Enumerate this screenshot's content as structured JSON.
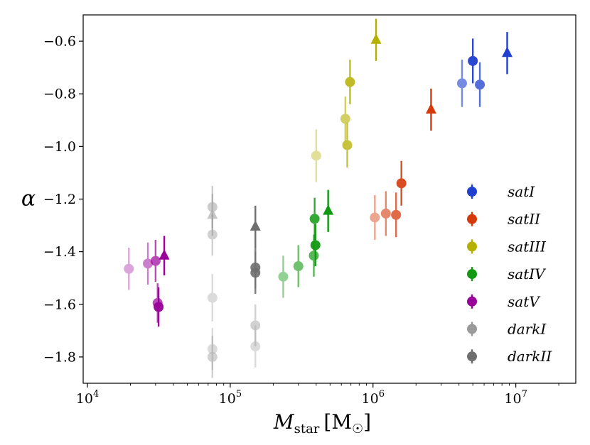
{
  "chart_data": {
    "type": "scatter",
    "title": "",
    "xlabel_main": "M",
    "xlabel_sub": "star",
    "xlabel_unit": "[M",
    "xlabel_unit_sub": "☉",
    "xlabel_close": "]",
    "ylabel": "α",
    "xscale": "log",
    "xlim_log10": [
      3.97,
      7.42
    ],
    "ylim": [
      -1.9,
      -0.5
    ],
    "xticks": [
      {
        "exp": 4,
        "label_base": "10",
        "label_exp": "4"
      },
      {
        "exp": 5,
        "label_base": "10",
        "label_exp": "5"
      },
      {
        "exp": 6,
        "label_base": "10",
        "label_exp": "6"
      },
      {
        "exp": 7,
        "label_base": "10",
        "label_exp": "7"
      }
    ],
    "yticks": [
      {
        "value": -0.6,
        "label": "−0.6"
      },
      {
        "value": -0.8,
        "label": "−0.8"
      },
      {
        "value": -1.0,
        "label": "−1.0"
      },
      {
        "value": -1.2,
        "label": "−1.2"
      },
      {
        "value": -1.4,
        "label": "−1.4"
      },
      {
        "value": -1.6,
        "label": "−1.6"
      },
      {
        "value": -1.8,
        "label": "−1.8"
      }
    ],
    "legend_position": "right",
    "series": [
      {
        "name": "satI",
        "color": "#1f3fcf",
        "points": [
          {
            "x": 4200000,
            "y": -0.76,
            "err": 0.09,
            "alpha": 0.6,
            "marker": "circle"
          },
          {
            "x": 5000000,
            "y": -0.675,
            "err": 0.085,
            "alpha": 0.95,
            "marker": "circle"
          },
          {
            "x": 5600000,
            "y": -0.765,
            "err": 0.085,
            "alpha": 0.75,
            "marker": "circle"
          },
          {
            "x": 8700000,
            "y": -0.645,
            "err": 0.08,
            "alpha": 1.0,
            "marker": "triangle"
          }
        ]
      },
      {
        "name": "satII",
        "color": "#d63a0a",
        "points": [
          {
            "x": 1030000,
            "y": -1.27,
            "err": 0.085,
            "alpha": 0.45,
            "marker": "circle"
          },
          {
            "x": 1230000,
            "y": -1.255,
            "err": 0.085,
            "alpha": 0.6,
            "marker": "circle"
          },
          {
            "x": 1450000,
            "y": -1.26,
            "err": 0.085,
            "alpha": 0.75,
            "marker": "circle"
          },
          {
            "x": 1580000,
            "y": -1.14,
            "err": 0.085,
            "alpha": 0.9,
            "marker": "circle"
          },
          {
            "x": 2550000,
            "y": -0.86,
            "err": 0.08,
            "alpha": 1.0,
            "marker": "triangle"
          }
        ]
      },
      {
        "name": "satIII",
        "color": "#b5b000",
        "points": [
          {
            "x": 400000,
            "y": -1.035,
            "err": 0.1,
            "alpha": 0.4,
            "marker": "circle"
          },
          {
            "x": 640000,
            "y": -0.895,
            "err": 0.085,
            "alpha": 0.6,
            "marker": "circle"
          },
          {
            "x": 660000,
            "y": -0.995,
            "err": 0.085,
            "alpha": 0.75,
            "marker": "circle"
          },
          {
            "x": 690000,
            "y": -0.755,
            "err": 0.085,
            "alpha": 0.85,
            "marker": "circle"
          },
          {
            "x": 1050000,
            "y": -0.595,
            "err": 0.08,
            "alpha": 1.0,
            "marker": "triangle"
          }
        ]
      },
      {
        "name": "satIV",
        "color": "#119911",
        "points": [
          {
            "x": 235000,
            "y": -1.495,
            "err": 0.08,
            "alpha": 0.45,
            "marker": "circle"
          },
          {
            "x": 300000,
            "y": -1.455,
            "err": 0.08,
            "alpha": 0.6,
            "marker": "circle"
          },
          {
            "x": 385000,
            "y": -1.415,
            "err": 0.08,
            "alpha": 0.7,
            "marker": "circle"
          },
          {
            "x": 390000,
            "y": -1.275,
            "err": 0.08,
            "alpha": 0.85,
            "marker": "circle"
          },
          {
            "x": 395000,
            "y": -1.375,
            "err": 0.08,
            "alpha": 0.95,
            "marker": "circle"
          },
          {
            "x": 485000,
            "y": -1.245,
            "err": 0.08,
            "alpha": 1.0,
            "marker": "triangle"
          }
        ]
      },
      {
        "name": "satV",
        "color": "#990099",
        "points": [
          {
            "x": 19500,
            "y": -1.465,
            "err": 0.08,
            "alpha": 0.35,
            "marker": "circle"
          },
          {
            "x": 26500,
            "y": -1.445,
            "err": 0.08,
            "alpha": 0.5,
            "marker": "circle"
          },
          {
            "x": 30000,
            "y": -1.435,
            "err": 0.08,
            "alpha": 0.7,
            "marker": "circle"
          },
          {
            "x": 31000,
            "y": -1.595,
            "err": 0.075,
            "alpha": 0.7,
            "marker": "circle"
          },
          {
            "x": 31500,
            "y": -1.61,
            "err": 0.075,
            "alpha": 0.95,
            "marker": "circle"
          },
          {
            "x": 34500,
            "y": -1.415,
            "err": 0.075,
            "alpha": 1.0,
            "marker": "triangle"
          }
        ]
      },
      {
        "name": "darkI",
        "color": "#9a9a9a",
        "points": [
          {
            "x": 75000,
            "y": -1.23,
            "err": 0.08,
            "alpha": 0.5,
            "marker": "circle"
          },
          {
            "x": 75000,
            "y": -1.335,
            "err": 0.08,
            "alpha": 0.45,
            "marker": "circle"
          },
          {
            "x": 75000,
            "y": -1.575,
            "err": 0.09,
            "alpha": 0.35,
            "marker": "circle"
          },
          {
            "x": 75000,
            "y": -1.77,
            "err": 0.08,
            "alpha": 0.35,
            "marker": "circle"
          },
          {
            "x": 75000,
            "y": -1.8,
            "err": 0.08,
            "alpha": 0.45,
            "marker": "circle"
          },
          {
            "x": 75000,
            "y": -1.26,
            "err": 0.08,
            "alpha": 0.55,
            "marker": "triangle"
          },
          {
            "x": 150000,
            "y": -1.68,
            "err": 0.08,
            "alpha": 0.45,
            "marker": "circle"
          },
          {
            "x": 150000,
            "y": -1.76,
            "err": 0.08,
            "alpha": 0.35,
            "marker": "circle"
          }
        ]
      },
      {
        "name": "darkII",
        "color": "#6e6e6e",
        "points": [
          {
            "x": 150000,
            "y": -1.46,
            "err": 0.08,
            "alpha": 0.9,
            "marker": "circle"
          },
          {
            "x": 150000,
            "y": -1.48,
            "err": 0.08,
            "alpha": 0.9,
            "marker": "circle"
          },
          {
            "x": 150000,
            "y": -1.305,
            "err": 0.08,
            "alpha": 1.0,
            "marker": "triangle"
          }
        ]
      }
    ]
  }
}
